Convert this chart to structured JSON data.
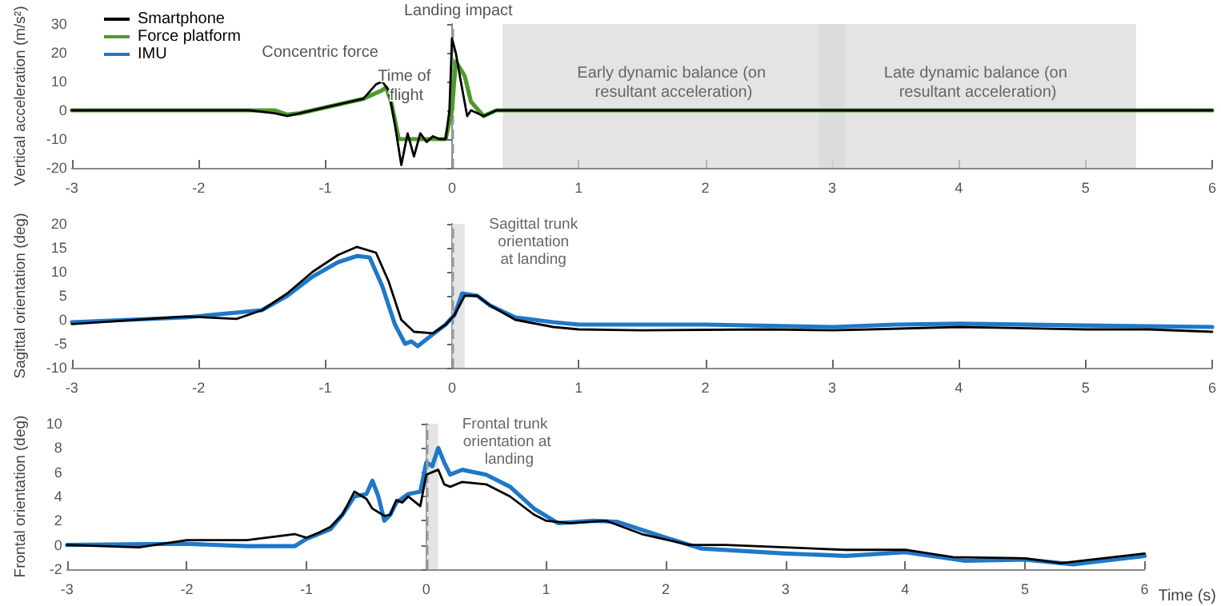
{
  "chart_data": [
    {
      "type": "line",
      "ylabel": "Vertical acceleration (m/s²)",
      "xlim": [
        -3,
        6
      ],
      "xticks": [
        -3,
        -2,
        -1,
        0,
        1,
        2,
        3,
        4,
        5,
        6
      ],
      "ylim": [
        -20,
        30
      ],
      "yticks": [
        -20,
        -10,
        0,
        10,
        20,
        30
      ],
      "grid": false,
      "legend": "top left",
      "marker": "none",
      "line_style": "solid",
      "series": [
        {
          "name": "Smartphone",
          "color": "#000000",
          "x": [
            -3,
            -2.5,
            -2,
            -1.6,
            -1.4,
            -1.3,
            -1.2,
            -1,
            -0.8,
            -0.7,
            -0.6,
            -0.55,
            -0.5,
            -0.45,
            -0.4,
            -0.35,
            -0.3,
            -0.25,
            -0.2,
            -0.15,
            -0.1,
            -0.05,
            -0.02,
            0,
            0.03,
            0.07,
            0.12,
            0.15,
            0.2,
            0.25,
            0.35,
            1,
            2,
            3,
            4,
            5,
            6
          ],
          "values": [
            0,
            0,
            0,
            0,
            -1,
            -2,
            -1,
            1,
            3,
            4,
            9,
            10,
            7,
            -5,
            -19,
            -8,
            -16,
            -8,
            -11,
            -9,
            -10,
            -10,
            0,
            25,
            20,
            10,
            -2,
            0,
            -1,
            -2,
            0,
            0,
            0,
            0,
            0,
            0,
            0
          ]
        },
        {
          "name": "Force platform",
          "color": "#4e9a2b",
          "x": [
            -3,
            -2,
            -1.4,
            -1.3,
            -1.2,
            -1,
            -0.8,
            -0.7,
            -0.6,
            -0.55,
            -0.52,
            -0.48,
            -0.42,
            -0.3,
            -0.2,
            -0.05,
            0,
            0.03,
            0.1,
            0.15,
            0.25,
            0.35,
            1,
            2,
            3,
            4,
            5,
            6
          ],
          "values": [
            0,
            0,
            0,
            -1.5,
            -1,
            1,
            3,
            4,
            6,
            7,
            8,
            3,
            -10,
            -10,
            -10,
            -10,
            0,
            17,
            12,
            3,
            -2,
            0,
            0,
            0,
            0,
            0,
            0,
            0
          ]
        },
        {
          "name": "IMU",
          "color": "#1f78c8"
        }
      ],
      "ref_lines": [
        {
          "axis": "x",
          "value": 0,
          "color": "#999999",
          "line_style": "dashed"
        }
      ],
      "bands": [
        {
          "axis": "x",
          "from": 0.4,
          "to": 3.1,
          "label": "Early dynamic balance (on resultant acceleration)",
          "color": "#d9d9d9"
        },
        {
          "axis": "x",
          "from": 2.9,
          "to": 5.4,
          "label": "Late dynamic balance (on resultant acceleration)",
          "color": "#d9d9d9"
        }
      ],
      "annotations": [
        "Concentric force",
        {
          "text": "Landing impact",
          "x": 0.05,
          "y": 31
        },
        "Time of flight"
      ]
    },
    {
      "type": "line",
      "ylabel": "Sagittal orientation (deg)",
      "xlim": [
        -3,
        6
      ],
      "xticks": [
        -3,
        -2,
        -1,
        0,
        1,
        2,
        3,
        4,
        5,
        6
      ],
      "ylim": [
        -10,
        20
      ],
      "yticks": [
        -10,
        -5,
        0,
        5,
        10,
        15,
        20
      ],
      "grid": false,
      "legend": false,
      "marker": "none",
      "line_style": "solid",
      "series": [
        {
          "color": "#000000",
          "x": [
            -3,
            -2.1,
            -1.7,
            -1.5,
            -1.3,
            -1.1,
            -0.9,
            -0.75,
            -0.6,
            -0.5,
            -0.4,
            -0.3,
            -0.15,
            -0.05,
            0.02,
            0.1,
            0.2,
            0.3,
            0.5,
            0.8,
            1,
            1.5,
            2.5,
            3,
            3.3,
            4,
            5,
            5.5,
            6
          ],
          "values": [
            -0.9,
            0.7,
            0.2,
            2,
            5.5,
            10,
            13.5,
            15.2,
            14,
            8,
            0,
            -2.5,
            -2.8,
            -1,
            1,
            5,
            5,
            3,
            0,
            -1.5,
            -2,
            -2.2,
            -2,
            -2.2,
            -2,
            -1.5,
            -2,
            -2,
            -2.5
          ]
        },
        {
          "color": "#1f78c8",
          "x": [
            -3,
            -2.1,
            -1.5,
            -1.3,
            -1.1,
            -0.9,
            -0.75,
            -0.65,
            -0.55,
            -0.45,
            -0.37,
            -0.32,
            -0.27,
            -0.15,
            -0.05,
            0.02,
            0.08,
            0.2,
            0.3,
            0.5,
            0.8,
            1,
            2,
            3,
            3.5,
            4,
            5,
            6
          ],
          "values": [
            -0.5,
            0.5,
            2,
            5,
            9,
            12,
            13.3,
            13,
            7,
            -1,
            -5,
            -4.5,
            -5.5,
            -3,
            -1,
            1,
            5.5,
            5,
            3,
            0.5,
            -0.5,
            -1,
            -1,
            -1.5,
            -1,
            -0.8,
            -1.2,
            -1.5
          ]
        }
      ],
      "ref_lines": [
        {
          "axis": "x",
          "value": 0,
          "color": "#999999",
          "line_style": "dashed"
        }
      ],
      "bands": [
        {
          "axis": "x",
          "from": 0,
          "to": 0.1,
          "label": "Sagittal trunk orientation at landing",
          "color": "#d9d9d9"
        }
      ]
    },
    {
      "type": "line",
      "xlabel": "Time (s)",
      "ylabel": "Frontal orientation (deg)",
      "xlim": [
        -3,
        6
      ],
      "xticks": [
        -3,
        -2,
        -1,
        0,
        1,
        2,
        3,
        4,
        5,
        6
      ],
      "ylim": [
        -2,
        10
      ],
      "yticks": [
        -2,
        0,
        2,
        4,
        6,
        8,
        10
      ],
      "grid": false,
      "legend": false,
      "marker": "none",
      "line_style": "solid",
      "series": [
        {
          "color": "#000000",
          "x": [
            -3,
            -2.4,
            -2,
            -1.5,
            -1.1,
            -1,
            -0.9,
            -0.8,
            -0.7,
            -0.6,
            -0.5,
            -0.45,
            -0.35,
            -0.3,
            -0.25,
            -0.2,
            -0.15,
            -0.05,
            0,
            0.05,
            0.1,
            0.15,
            0.2,
            0.3,
            0.5,
            0.7,
            0.9,
            1,
            1.2,
            1.5,
            1.8,
            2.2,
            2.5,
            3,
            3.5,
            4,
            4.4,
            5,
            5.3,
            6
          ],
          "values": [
            0,
            -0.2,
            0.4,
            0.4,
            0.9,
            0.6,
            1,
            1.5,
            2.5,
            4.4,
            3.8,
            3,
            2.4,
            2.5,
            3.7,
            3.5,
            4,
            3.2,
            5.8,
            6,
            6.2,
            5,
            4.8,
            5.2,
            5,
            4,
            2.5,
            2,
            1.8,
            2,
            0.9,
            0,
            0,
            -0.2,
            -0.4,
            -0.4,
            -1,
            -1.1,
            -1.5,
            -0.7
          ]
        },
        {
          "color": "#1f78c8",
          "x": [
            -3,
            -2,
            -1.5,
            -1.1,
            -1,
            -0.8,
            -0.7,
            -0.6,
            -0.5,
            -0.45,
            -0.4,
            -0.35,
            -0.3,
            -0.25,
            -0.15,
            -0.05,
            0,
            0.05,
            0.1,
            0.15,
            0.2,
            0.3,
            0.5,
            0.7,
            0.9,
            1,
            1.1,
            1.4,
            1.6,
            2,
            2.3,
            3,
            3.5,
            4,
            4.5,
            5,
            5.4,
            6
          ],
          "values": [
            0,
            0.1,
            -0.1,
            -0.1,
            0.5,
            1.3,
            2.5,
            4,
            4.2,
            5.3,
            4,
            2,
            2.5,
            3.5,
            4.2,
            4.4,
            6.8,
            6.5,
            8,
            6.8,
            5.8,
            6.2,
            5.8,
            4.8,
            3,
            2.4,
            1.8,
            2,
            1.9,
            0.6,
            -0.3,
            -0.7,
            -0.9,
            -0.6,
            -1.3,
            -1.2,
            -1.6,
            -0.9
          ]
        }
      ],
      "ref_lines": [
        {
          "axis": "x",
          "value": 0,
          "color": "#999999",
          "line_style": "dashed"
        }
      ],
      "bands": [
        {
          "axis": "x",
          "from": 0,
          "to": 0.1,
          "label": "Frontal trunk orientation at landing",
          "color": "#d9d9d9"
        }
      ]
    }
  ]
}
